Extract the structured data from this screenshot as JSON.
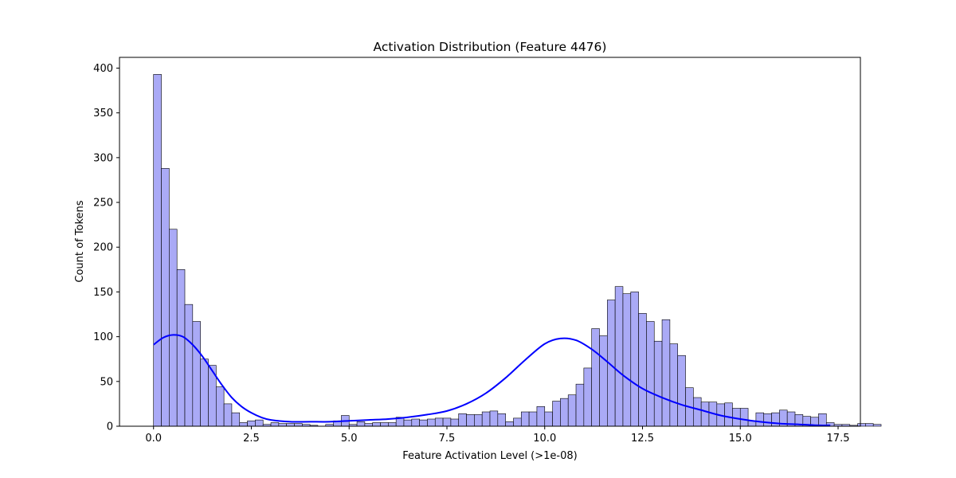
{
  "chart_data": {
    "type": "bar",
    "title": "Activation Distribution (Feature 4476)",
    "xlabel": "Feature Activation Level (>1e-08)",
    "ylabel": "Count of Tokens",
    "xlim": [
      -0.87,
      18.07
    ],
    "ylim": [
      0,
      412
    ],
    "xticks": [
      0.0,
      2.5,
      5.0,
      7.5,
      10.0,
      12.5,
      15.0,
      17.5
    ],
    "xtick_labels": [
      "0.0",
      "2.5",
      "5.0",
      "7.5",
      "10.0",
      "12.5",
      "15.0",
      "17.5"
    ],
    "yticks": [
      0,
      50,
      100,
      150,
      200,
      250,
      300,
      350,
      400
    ],
    "ytick_labels": [
      "0",
      "50",
      "100",
      "150",
      "200",
      "250",
      "300",
      "350",
      "400"
    ],
    "grid": false,
    "bin_start": 0.0,
    "bin_width": 0.2,
    "counts": [
      393,
      288,
      220,
      175,
      136,
      117,
      75,
      68,
      44,
      25,
      15,
      4,
      6,
      7,
      2,
      4,
      3,
      3,
      3,
      2,
      1,
      0,
      2,
      6,
      12,
      2,
      5,
      3,
      4,
      4,
      4,
      10,
      7,
      8,
      7,
      8,
      9,
      9,
      8,
      14,
      13,
      13,
      16,
      17,
      14,
      5,
      9,
      16,
      16,
      22,
      16,
      28,
      31,
      35,
      47,
      65,
      109,
      101,
      141,
      156,
      148,
      150,
      126,
      117,
      95,
      119,
      92,
      79,
      43,
      32,
      27,
      27,
      25,
      26,
      20,
      20,
      6,
      15,
      14,
      15,
      18,
      16,
      13,
      11,
      10,
      14,
      4,
      2,
      2,
      1,
      3,
      3,
      2
    ],
    "bar_color": "#aaaaf6",
    "bar_edge_color": "#000000",
    "kde": {
      "color": "#0000ff",
      "x": [
        0.0,
        0.25,
        0.5,
        0.75,
        1.0,
        1.25,
        1.5,
        1.75,
        2.0,
        2.25,
        2.5,
        2.75,
        3.0,
        3.5,
        4.0,
        4.5,
        5.0,
        5.5,
        6.0,
        6.5,
        7.0,
        7.5,
        8.0,
        8.5,
        9.0,
        9.5,
        10.0,
        10.4,
        10.8,
        11.2,
        11.6,
        12.0,
        12.5,
        13.0,
        13.5,
        14.0,
        14.5,
        15.0,
        15.5,
        16.0,
        16.5,
        17.0,
        17.3
      ],
      "y": [
        91,
        99,
        102,
        100,
        91,
        78,
        62,
        46,
        32,
        22,
        15,
        10,
        7,
        5,
        5,
        5,
        6,
        7,
        8,
        10,
        13,
        17,
        25,
        37,
        54,
        74,
        92,
        98,
        96,
        86,
        72,
        57,
        42,
        32,
        24,
        18,
        12,
        8,
        5,
        3,
        2,
        1,
        1
      ]
    }
  }
}
